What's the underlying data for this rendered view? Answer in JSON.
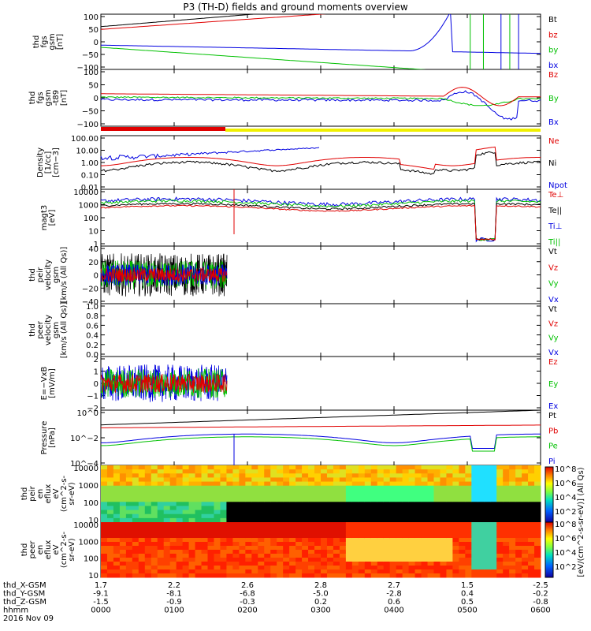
{
  "title": "P3 (TH-D) fields and ground moments overview",
  "date": "2016 Nov 09",
  "colors": {
    "black": "#000000",
    "red": "#e00000",
    "green": "#00c000",
    "blue": "#0000e0",
    "yellow": "#f0f000"
  },
  "chart_data": {
    "type": "line",
    "time_axis": {
      "ticks": [
        "0000",
        "0100",
        "0200",
        "0300",
        "0400",
        "0500",
        "0600"
      ],
      "rows": [
        {
          "label": "thd_X-GSM",
          "values": [
            "1.7",
            "2.2",
            "2.6",
            "2.8",
            "2.7",
            "1.5",
            "-2.5"
          ]
        },
        {
          "label": "thd_Y-GSM",
          "values": [
            "-9.1",
            "-8.1",
            "-6.8",
            "-5.0",
            "-2.8",
            "0.4",
            "-0.2"
          ]
        },
        {
          "label": "thd_Z-GSM",
          "values": [
            "-1.5",
            "-0.9",
            "-0.3",
            "0.2",
            "0.6",
            "0.5",
            "-0.8"
          ]
        },
        {
          "label": "hhmm",
          "values": [
            "0000",
            "0100",
            "0200",
            "0300",
            "0400",
            "0500",
            "0600"
          ]
        }
      ]
    },
    "panels": [
      {
        "name": "fgs",
        "ylabel": [
          "thd",
          "fgs",
          "gsm",
          "[nT]"
        ],
        "ylim": [
          -100,
          100
        ],
        "ticks": [
          "100",
          "50",
          "0",
          "−50",
          "−100"
        ],
        "legend": [
          {
            "text": "Bt",
            "color": "#000000"
          },
          {
            "text": "bz",
            "color": "#e00000"
          },
          {
            "text": "by",
            "color": "#00c000"
          },
          {
            "text": "bx",
            "color": "#0000e0"
          }
        ]
      },
      {
        "name": "fgs-t89",
        "ylabel": [
          "thd",
          "fgs",
          "gsm",
          "-t89",
          "[nT]"
        ],
        "ylim": [
          -125,
          125
        ],
        "ticks": [
          "100",
          "50",
          "0",
          "−50",
          "−100"
        ],
        "legend": [
          {
            "text": "Bz",
            "color": "#e00000"
          },
          {
            "text": "By",
            "color": "#00c000"
          },
          {
            "text": "Bx",
            "color": "#0000e0"
          }
        ]
      },
      {
        "name": "density",
        "ylabel": [
          "Density",
          "[1/cc]",
          "[cm−3]"
        ],
        "scale": "log",
        "ticks": [
          "100.00",
          "10.00",
          "1.00",
          "0.10",
          "0.01"
        ],
        "legend": [
          {
            "text": "Ne",
            "color": "#e00000"
          },
          {
            "text": "Ni",
            "color": "#000000"
          },
          {
            "text": "Npot",
            "color": "#0000e0"
          }
        ]
      },
      {
        "name": "temperature",
        "ylabel": [
          "magt3",
          "[eV]"
        ],
        "scale": "log",
        "ticks": [
          "10000",
          "1000",
          "100",
          "10",
          "1"
        ],
        "legend": [
          {
            "text": "Te⊥",
            "color": "#e00000"
          },
          {
            "text": "Te||",
            "color": "#000000"
          },
          {
            "text": "Ti⊥",
            "color": "#0000e0"
          },
          {
            "text": "Ti||",
            "color": "#00c000"
          }
        ]
      },
      {
        "name": "peir-velocity",
        "ylabel": [
          "thd",
          "peir",
          "velocity",
          "gsm",
          "[km/s (All Qs)]"
        ],
        "ylim": [
          -40,
          40
        ],
        "ticks": [
          "40",
          "20",
          "0",
          "−20",
          "−40"
        ],
        "legend": [
          {
            "text": "Vt",
            "color": "#000000"
          },
          {
            "text": "Vz",
            "color": "#e00000"
          },
          {
            "text": "Vy",
            "color": "#00c000"
          },
          {
            "text": "Vx",
            "color": "#0000e0"
          }
        ]
      },
      {
        "name": "peer-velocity",
        "ylabel": [
          "thd",
          "peer",
          "velocity",
          "gsm",
          "[km/s (All Qs)]"
        ],
        "ylim": [
          0,
          1
        ],
        "ticks": [
          "1.0",
          "0.8",
          "0.6",
          "0.4",
          "0.2",
          "0.0"
        ],
        "legend": [
          {
            "text": "Vt",
            "color": "#000000"
          },
          {
            "text": "Vz",
            "color": "#e00000"
          },
          {
            "text": "Vy",
            "color": "#00c000"
          },
          {
            "text": "Vx",
            "color": "#0000e0"
          }
        ]
      },
      {
        "name": "efield",
        "ylabel": [
          "E=−VxB",
          "[mV/m]"
        ],
        "ylim": [
          -2,
          2
        ],
        "ticks": [
          "2",
          "1",
          "0",
          "−1",
          "−2"
        ],
        "legend": [
          {
            "text": "Ez",
            "color": "#e00000"
          },
          {
            "text": "Ey",
            "color": "#00c000"
          },
          {
            "text": "Ex",
            "color": "#0000e0"
          }
        ]
      },
      {
        "name": "pressure",
        "ylabel": [
          "Pressure",
          "[nPa]"
        ],
        "scale": "log",
        "ticks": [
          "10^0",
          "10^−2",
          "10^−4"
        ],
        "legend": [
          {
            "text": "Pt",
            "color": "#000000"
          },
          {
            "text": "Pb",
            "color": "#e00000"
          },
          {
            "text": "Pe",
            "color": "#00c000"
          },
          {
            "text": "Pi",
            "color": "#0000e0"
          }
        ]
      },
      {
        "name": "peir-spec",
        "ylabel": [
          "thd",
          "peir",
          "en",
          "eflux",
          "eV",
          "(cm^2-s-",
          "sr-eV)"
        ],
        "scale": "log",
        "ticks": [
          "10000",
          "1000",
          "100",
          "10"
        ]
      },
      {
        "name": "peer-spec",
        "ylabel": [
          "thd",
          "peer",
          "en",
          "eflux",
          "eV",
          "(cm^2-s-",
          "sr-eV)"
        ],
        "scale": "log",
        "ticks": [
          "10000",
          "1000",
          "100",
          "10"
        ]
      }
    ],
    "colorbar": {
      "label": "[eV/(cm^2-s-sr-eV)] (All Qs)",
      "ticks_top": [
        "10^8",
        "10^6",
        "10^4",
        "10^2"
      ],
      "ticks_bottom": [
        "10^8",
        "10^6",
        "10^4",
        "10^2"
      ]
    }
  }
}
